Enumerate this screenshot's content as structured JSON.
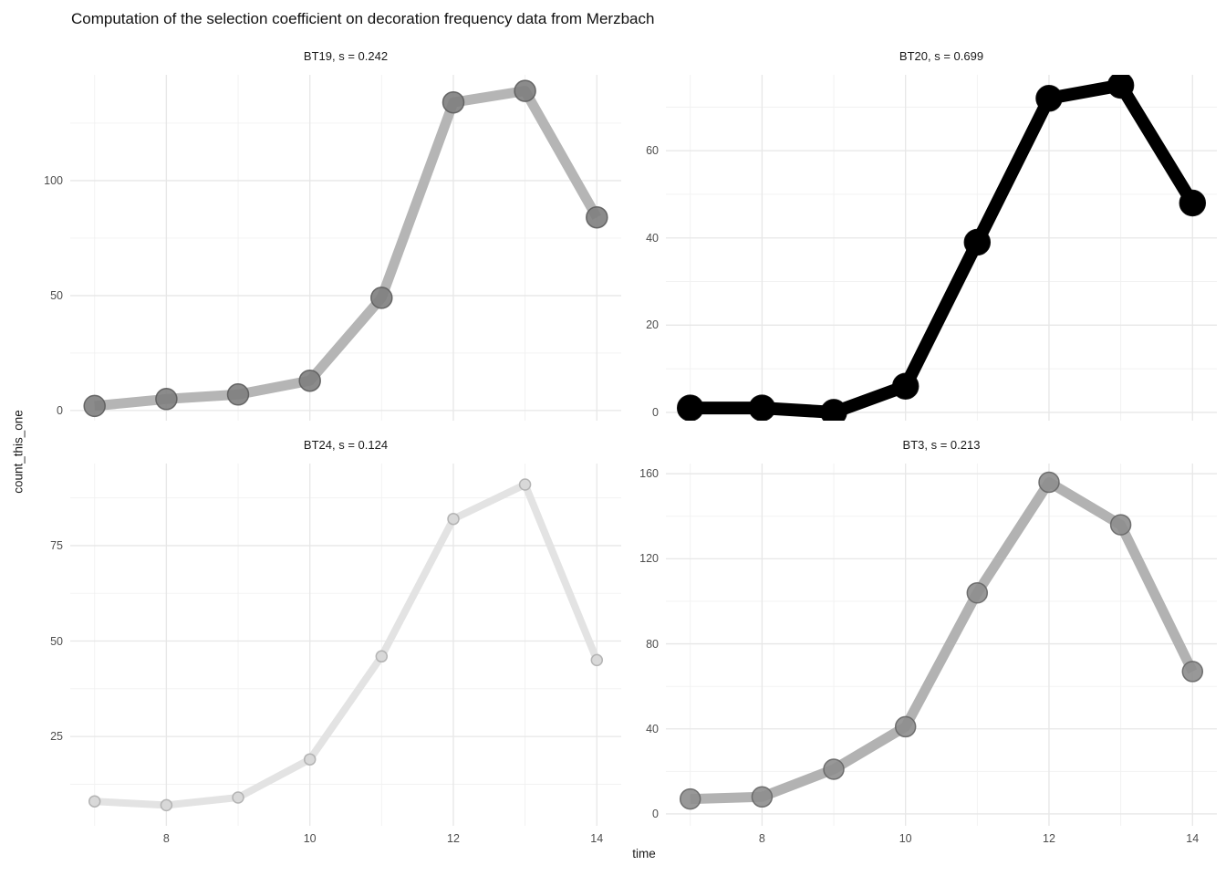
{
  "chart_data": {
    "type": "line",
    "title": "Computation of the selection coefficient on decoration frequency data from Merzbach",
    "xlabel": "time",
    "ylabel": "count_this_one",
    "facet_layout": "2x2",
    "grid": "on",
    "legend": "none",
    "x": [
      7,
      8,
      9,
      10,
      11,
      12,
      13,
      14
    ],
    "x_domain": [
      6.66,
      14.34
    ],
    "x_major_gridlines": [
      8,
      10,
      12,
      14
    ],
    "x_minor_gridlines": [
      7,
      9,
      11,
      13
    ],
    "x_tick_labels": [
      "8",
      "10",
      "12",
      "14"
    ],
    "colors": {
      "major_gridline": "#e7e7e7",
      "minor_gridline": "#f1f1f1",
      "tick_label": "#4d4d4d",
      "text": "#1a1a1a"
    },
    "panels": [
      {
        "id": "BT19",
        "title": "BT19, s = 0.242",
        "s": 0.242,
        "values": [
          2,
          5,
          7,
          13,
          49,
          134,
          139,
          84
        ],
        "y_domain": [
          -4.4,
          146
        ],
        "y_ticks": [
          0,
          50,
          100
        ],
        "y_minor": [
          25,
          75,
          125
        ],
        "line_color": "#b5b5b5",
        "line_width": 11,
        "point_radius": 11.5,
        "point_fill": "#7e7e7e",
        "point_stroke": "#5c5c5c",
        "point_opacity": 0.9
      },
      {
        "id": "BT20",
        "title": "BT20, s = 0.699",
        "s": 0.699,
        "values": [
          1,
          1,
          0,
          6,
          39,
          72,
          75,
          48
        ],
        "y_domain": [
          -1.9,
          77.4
        ],
        "y_ticks": [
          0,
          20,
          40,
          60
        ],
        "y_minor": [
          10,
          30,
          50,
          70
        ],
        "line_color": "#000000",
        "line_width": 14,
        "point_radius": 14,
        "point_fill": "#000000",
        "point_stroke": "#000000",
        "point_opacity": 1
      },
      {
        "id": "BT24",
        "title": "BT24, s = 0.124",
        "s": 0.124,
        "values": [
          8,
          7,
          9,
          19,
          46,
          82,
          91,
          45
        ],
        "y_domain": [
          1.6,
          96.5
        ],
        "y_ticks": [
          25,
          50,
          75
        ],
        "y_minor": [
          12.5,
          37.5,
          62.5,
          87.5
        ],
        "line_color": "#e3e3e3",
        "line_width": 8,
        "point_radius": 6,
        "point_fill": "#d7d7d7",
        "point_stroke": "#aeaeae",
        "point_opacity": 0.95
      },
      {
        "id": "BT3",
        "title": "BT3, s = 0.213",
        "s": 0.213,
        "values": [
          7,
          8,
          21,
          41,
          104,
          156,
          136,
          67
        ],
        "y_domain": [
          -5.6,
          164.8
        ],
        "y_ticks": [
          0,
          40,
          80,
          120,
          160
        ],
        "y_minor": [
          20,
          60,
          100,
          140
        ],
        "line_color": "#b2b2b2",
        "line_width": 11,
        "point_radius": 11,
        "point_fill": "#8d8d8d",
        "point_stroke": "#666666",
        "point_opacity": 0.9
      }
    ]
  }
}
